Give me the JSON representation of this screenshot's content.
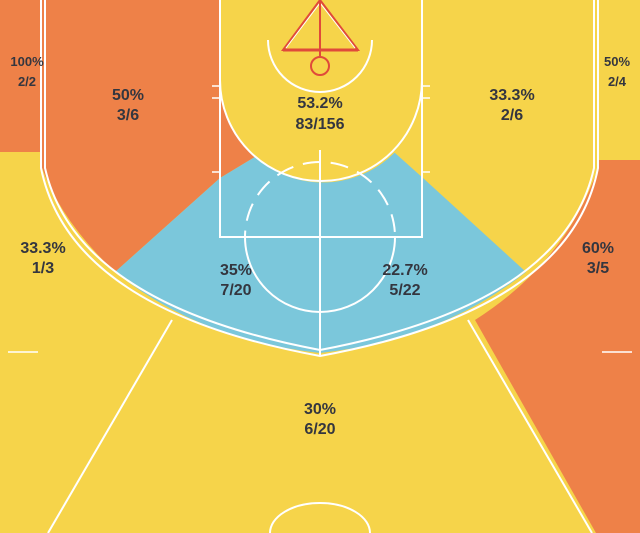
{
  "colors": {
    "hot": "#ee8148",
    "average": "#f6d44a",
    "cold": "#7bc7db",
    "lines": "#ffffff",
    "rim": "#e04a3a",
    "text": "#34363f"
  },
  "chart_data": {
    "type": "heatmap",
    "title": "",
    "zones": [
      {
        "id": "left-corner-three",
        "pct": "100%",
        "frac": "2/2",
        "made": 2,
        "attempts": 2,
        "color": "#ee8148"
      },
      {
        "id": "left-baseline-mid",
        "pct": "50%",
        "frac": "3/6",
        "made": 3,
        "attempts": 6,
        "color": "#ee8148"
      },
      {
        "id": "restricted-area",
        "pct": "53.2%",
        "frac": "83/156",
        "made": 83,
        "attempts": 156,
        "color": "#f6d44a"
      },
      {
        "id": "right-baseline-mid",
        "pct": "33.3%",
        "frac": "2/6",
        "made": 2,
        "attempts": 6,
        "color": "#f6d44a"
      },
      {
        "id": "right-corner-three",
        "pct": "50%",
        "frac": "2/4",
        "made": 2,
        "attempts": 4,
        "color": "#f6d44a"
      },
      {
        "id": "left-wing-three",
        "pct": "33.3%",
        "frac": "1/3",
        "made": 1,
        "attempts": 3,
        "color": "#f6d44a"
      },
      {
        "id": "paint-left",
        "pct": "35%",
        "frac": "7/20",
        "made": 7,
        "attempts": 20,
        "color": "#7bc7db"
      },
      {
        "id": "paint-right",
        "pct": "22.7%",
        "frac": "5/22",
        "made": 5,
        "attempts": 22,
        "color": "#7bc7db"
      },
      {
        "id": "right-wing-three",
        "pct": "60%",
        "frac": "3/5",
        "made": 3,
        "attempts": 5,
        "color": "#ee8148"
      },
      {
        "id": "top-of-key-three",
        "pct": "30%",
        "frac": "6/20",
        "made": 6,
        "attempts": 20,
        "color": "#f6d44a"
      }
    ]
  }
}
